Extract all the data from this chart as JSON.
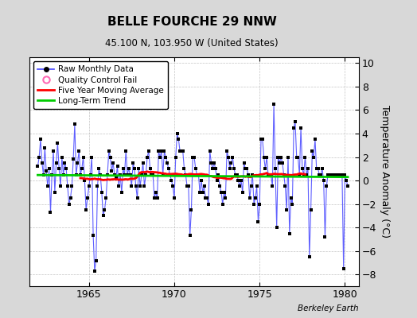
{
  "title": "BELLE FOURCHE 29 NNW",
  "subtitle": "45.100 N, 103.950 W (United States)",
  "ylabel": "Temperature Anomaly (°C)",
  "watermark": "Berkeley Earth",
  "ylim": [
    -9,
    10.5
  ],
  "yticks": [
    -8,
    -6,
    -4,
    -2,
    0,
    2,
    4,
    6,
    8,
    10
  ],
  "xlim": [
    1961.5,
    1980.8
  ],
  "xticks": [
    1965,
    1970,
    1975,
    1980
  ],
  "bg_color": "#d8d8d8",
  "plot_bg_color": "#ffffff",
  "raw_color": "#4444ff",
  "ma_color": "#ff0000",
  "trend_color": "#00cc00",
  "qc_color": "#ff69b4",
  "raw_data": {
    "times": [
      1962.0,
      1962.083,
      1962.167,
      1962.25,
      1962.333,
      1962.417,
      1962.5,
      1962.583,
      1962.667,
      1962.75,
      1962.833,
      1962.917,
      1963.0,
      1963.083,
      1963.167,
      1963.25,
      1963.333,
      1963.417,
      1963.5,
      1963.583,
      1963.667,
      1963.75,
      1963.833,
      1963.917,
      1964.0,
      1964.083,
      1964.167,
      1964.25,
      1964.333,
      1964.417,
      1964.5,
      1964.583,
      1964.667,
      1964.75,
      1964.833,
      1964.917,
      1965.0,
      1965.083,
      1965.167,
      1965.25,
      1965.333,
      1965.417,
      1965.5,
      1965.583,
      1965.667,
      1965.75,
      1965.833,
      1965.917,
      1966.0,
      1966.083,
      1966.167,
      1966.25,
      1966.333,
      1966.417,
      1966.5,
      1966.583,
      1966.667,
      1966.75,
      1966.833,
      1966.917,
      1967.0,
      1967.083,
      1967.167,
      1967.25,
      1967.333,
      1967.417,
      1967.5,
      1967.583,
      1967.667,
      1967.75,
      1967.833,
      1967.917,
      1968.0,
      1968.083,
      1968.167,
      1968.25,
      1968.333,
      1968.417,
      1968.5,
      1968.583,
      1968.667,
      1968.75,
      1968.833,
      1968.917,
      1969.0,
      1969.083,
      1969.167,
      1969.25,
      1969.333,
      1969.417,
      1969.5,
      1969.583,
      1969.667,
      1969.75,
      1969.833,
      1969.917,
      1970.0,
      1970.083,
      1970.167,
      1970.25,
      1970.333,
      1970.417,
      1970.5,
      1970.583,
      1970.667,
      1970.75,
      1970.833,
      1970.917,
      1971.0,
      1971.083,
      1971.167,
      1971.25,
      1971.333,
      1971.417,
      1971.5,
      1971.583,
      1971.667,
      1971.75,
      1971.833,
      1971.917,
      1972.0,
      1972.083,
      1972.167,
      1972.25,
      1972.333,
      1972.417,
      1972.5,
      1972.583,
      1972.667,
      1972.75,
      1972.833,
      1972.917,
      1973.0,
      1973.083,
      1973.167,
      1973.25,
      1973.333,
      1973.417,
      1973.5,
      1973.583,
      1973.667,
      1973.75,
      1973.833,
      1973.917,
      1974.0,
      1974.083,
      1974.167,
      1974.25,
      1974.333,
      1974.417,
      1974.5,
      1974.583,
      1974.667,
      1974.75,
      1974.833,
      1974.917,
      1975.0,
      1975.083,
      1975.167,
      1975.25,
      1975.333,
      1975.417,
      1975.5,
      1975.583,
      1975.667,
      1975.75,
      1975.833,
      1975.917,
      1976.0,
      1976.083,
      1976.167,
      1976.25,
      1976.333,
      1976.417,
      1976.5,
      1976.583,
      1976.667,
      1976.75,
      1976.833,
      1976.917,
      1977.0,
      1977.083,
      1977.167,
      1977.25,
      1977.333,
      1977.417,
      1977.5,
      1977.583,
      1977.667,
      1977.75,
      1977.833,
      1977.917,
      1978.0,
      1978.083,
      1978.167,
      1978.25,
      1978.333,
      1978.417,
      1978.5,
      1978.583,
      1978.667,
      1978.75,
      1978.833,
      1978.917,
      1979.0,
      1979.083,
      1979.167,
      1979.25,
      1979.333,
      1979.417,
      1979.5,
      1979.583,
      1979.667,
      1979.75,
      1979.833,
      1979.917,
      1980.0,
      1980.083,
      1980.167
    ],
    "values": [
      1.2,
      2.0,
      3.5,
      1.5,
      0.5,
      2.8,
      0.8,
      -0.5,
      1.0,
      -2.7,
      0.5,
      2.5,
      -1.0,
      1.5,
      3.2,
      1.0,
      -0.5,
      2.0,
      0.5,
      1.5,
      1.0,
      -0.5,
      -2.0,
      -1.5,
      -0.5,
      1.8,
      4.8,
      0.5,
      1.5,
      2.5,
      0.5,
      1.0,
      2.0,
      0.0,
      -2.5,
      -1.5,
      -0.5,
      0.5,
      2.0,
      -4.7,
      -7.7,
      -6.8,
      -0.5,
      1.0,
      0.5,
      -1.0,
      -3.0,
      -2.5,
      -1.5,
      0.5,
      2.5,
      2.0,
      0.8,
      1.5,
      0.5,
      0.2,
      1.2,
      -0.5,
      0.5,
      -1.0,
      1.0,
      0.5,
      2.5,
      0.5,
      1.0,
      0.5,
      -0.5,
      1.5,
      1.0,
      -0.5,
      -1.5,
      1.0,
      -0.5,
      0.5,
      1.5,
      -0.5,
      0.5,
      2.0,
      2.5,
      1.0,
      0.5,
      0.5,
      -1.5,
      -1.0,
      -1.5,
      2.5,
      2.0,
      2.5,
      0.5,
      2.5,
      2.0,
      1.5,
      1.0,
      0.5,
      0.0,
      -0.5,
      -1.5,
      2.0,
      4.0,
      3.5,
      2.5,
      2.5,
      2.5,
      1.0,
      0.5,
      -0.5,
      -0.5,
      -4.7,
      -2.5,
      2.0,
      2.0,
      1.0,
      0.5,
      0.5,
      -1.0,
      0.0,
      -1.0,
      -0.5,
      -1.5,
      -1.5,
      -2.0,
      2.5,
      1.5,
      1.0,
      1.5,
      1.0,
      0.0,
      0.5,
      -0.5,
      -1.0,
      -2.0,
      -1.0,
      -1.5,
      2.5,
      2.0,
      1.0,
      1.5,
      2.0,
      1.0,
      0.5,
      0.5,
      0.0,
      -0.5,
      0.0,
      -1.0,
      1.5,
      1.0,
      1.0,
      0.5,
      -1.5,
      -0.5,
      0.5,
      -2.0,
      -1.5,
      -0.5,
      -3.5,
      -2.0,
      3.5,
      3.5,
      2.0,
      1.0,
      2.0,
      0.5,
      0.5,
      0.5,
      -0.5,
      6.5,
      1.0,
      -4.0,
      2.0,
      1.5,
      2.0,
      1.5,
      0.5,
      -0.5,
      -2.5,
      2.0,
      -4.5,
      -1.5,
      -2.0,
      4.5,
      5.0,
      2.0,
      2.0,
      0.5,
      4.5,
      1.0,
      0.5,
      2.0,
      0.5,
      1.0,
      -6.5,
      -2.5,
      2.5,
      2.0,
      3.5,
      1.0,
      1.0,
      0.5,
      0.5,
      1.0,
      0.0,
      -4.8,
      -0.5,
      0.5,
      0.5,
      0.5,
      0.5,
      0.5,
      0.5,
      0.5,
      0.5,
      0.5,
      0.5,
      0.5,
      -7.5,
      0.5,
      0.0,
      -0.5
    ]
  }
}
